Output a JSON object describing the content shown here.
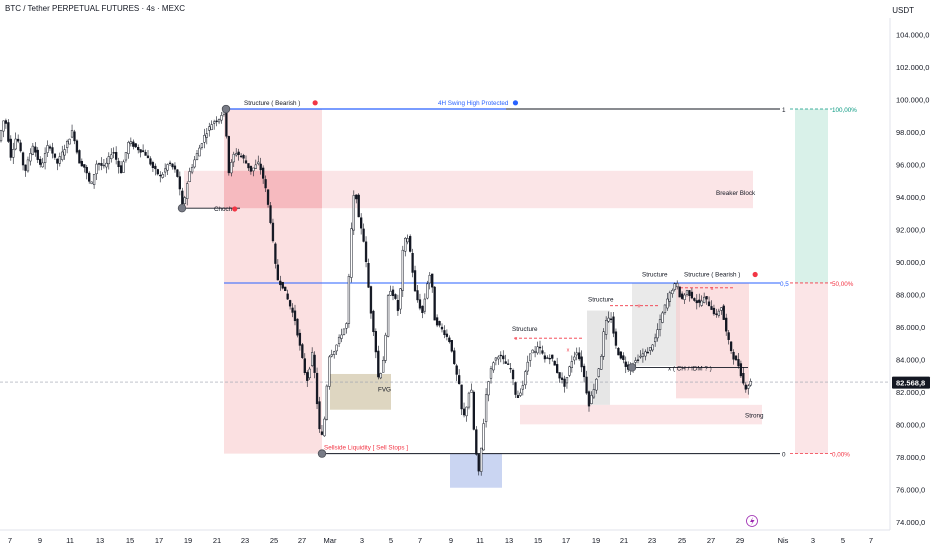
{
  "header": {
    "title": "BTC / Tether PERPETUAL FUTURES · 4s · MEXC",
    "currency": "USDT"
  },
  "colors": {
    "bull": "#131722",
    "bear": "#131722",
    "red_zone": "#f7c6c9",
    "blue_line": "#2962ff",
    "green_zone": "#cfeee4",
    "fvg": "#d8cfb6",
    "gray_zone": "#dcdcdc",
    "price_tag": "#131722"
  },
  "chart_data": {
    "type": "candlestick",
    "ylim": [
      73500,
      105000
    ],
    "xlim": [
      0,
      871
    ],
    "yticks": [
      {
        "value": 74000,
        "label": "74.000,0"
      },
      {
        "value": 76000,
        "label": "76.000,0"
      },
      {
        "value": 78000,
        "label": "78.000,0"
      },
      {
        "value": 80000,
        "label": "80.000,0"
      },
      {
        "value": 82000,
        "label": "82.000,0"
      },
      {
        "value": 84000,
        "label": "84.000,0"
      },
      {
        "value": 86000,
        "label": "86.000,0"
      },
      {
        "value": 88000,
        "label": "88.000,0"
      },
      {
        "value": 90000,
        "label": "90.000,0"
      },
      {
        "value": 92000,
        "label": "92.000,0"
      },
      {
        "value": 94000,
        "label": "94.000,0"
      },
      {
        "value": 96000,
        "label": "96.000,0"
      },
      {
        "value": 98000,
        "label": "98.000,0"
      },
      {
        "value": 100000,
        "label": "100.000,0"
      },
      {
        "value": 102000,
        "label": "102.000,0"
      },
      {
        "value": 104000,
        "label": "104.000,0"
      }
    ],
    "xticks": [
      {
        "t": 10,
        "label": "7"
      },
      {
        "t": 40,
        "label": "9"
      },
      {
        "t": 70,
        "label": "11"
      },
      {
        "t": 100,
        "label": "13"
      },
      {
        "t": 130,
        "label": "15"
      },
      {
        "t": 159,
        "label": "17"
      },
      {
        "t": 188,
        "label": "19"
      },
      {
        "t": 217,
        "label": "21"
      },
      {
        "t": 245,
        "label": "23"
      },
      {
        "t": 274,
        "label": "25"
      },
      {
        "t": 302,
        "label": "27"
      },
      {
        "t": 330,
        "label": "Mar"
      },
      {
        "t": 362,
        "label": "3"
      },
      {
        "t": 391,
        "label": "5"
      },
      {
        "t": 420,
        "label": "7"
      },
      {
        "t": 451,
        "label": "9"
      },
      {
        "t": 480,
        "label": "11"
      },
      {
        "t": 509,
        "label": "13"
      },
      {
        "t": 538,
        "label": "15"
      },
      {
        "t": 566,
        "label": "17"
      },
      {
        "t": 596,
        "label": "19"
      },
      {
        "t": 624,
        "label": "21"
      },
      {
        "t": 652,
        "label": "23"
      },
      {
        "t": 682,
        "label": "25"
      },
      {
        "t": 711,
        "label": "27"
      },
      {
        "t": 740,
        "label": "29"
      },
      {
        "t": 783,
        "label": "Nis"
      },
      {
        "t": 813,
        "label": "3"
      },
      {
        "t": 843,
        "label": "5"
      },
      {
        "t": 871,
        "label": "7"
      }
    ],
    "price_path": [
      [
        0,
        97500
      ],
      [
        6,
        99000
      ],
      [
        12,
        96500
      ],
      [
        18,
        97800
      ],
      [
        26,
        95500
      ],
      [
        34,
        97200
      ],
      [
        42,
        95800
      ],
      [
        50,
        97300
      ],
      [
        58,
        96000
      ],
      [
        66,
        97000
      ],
      [
        74,
        98100
      ],
      [
        80,
        96200
      ],
      [
        86,
        95800
      ],
      [
        92,
        94600
      ],
      [
        98,
        96100
      ],
      [
        106,
        95800
      ],
      [
        114,
        96900
      ],
      [
        122,
        95500
      ],
      [
        130,
        97400
      ],
      [
        138,
        97000
      ],
      [
        146,
        96700
      ],
      [
        154,
        95800
      ],
      [
        162,
        95200
      ],
      [
        170,
        96100
      ],
      [
        178,
        95500
      ],
      [
        184,
        93300
      ],
      [
        190,
        95400
      ],
      [
        198,
        96600
      ],
      [
        206,
        97800
      ],
      [
        214,
        98600
      ],
      [
        220,
        98800
      ],
      [
        226,
        99400
      ],
      [
        230,
        95500
      ],
      [
        236,
        96800
      ],
      [
        244,
        96400
      ],
      [
        252,
        95600
      ],
      [
        260,
        96100
      ],
      [
        266,
        94800
      ],
      [
        272,
        92400
      ],
      [
        278,
        89000
      ],
      [
        284,
        88500
      ],
      [
        290,
        87500
      ],
      [
        296,
        86500
      ],
      [
        302,
        84500
      ],
      [
        308,
        82600
      ],
      [
        314,
        84500
      ],
      [
        318,
        81500
      ],
      [
        322,
        78800
      ],
      [
        326,
        80500
      ],
      [
        330,
        84200
      ],
      [
        336,
        84600
      ],
      [
        342,
        85500
      ],
      [
        348,
        86200
      ],
      [
        352,
        91500
      ],
      [
        356,
        94800
      ],
      [
        360,
        92600
      ],
      [
        364,
        91800
      ],
      [
        368,
        89500
      ],
      [
        372,
        87000
      ],
      [
        376,
        85200
      ],
      [
        380,
        82600
      ],
      [
        386,
        84500
      ],
      [
        390,
        88500
      ],
      [
        396,
        87800
      ],
      [
        400,
        86800
      ],
      [
        404,
        90600
      ],
      [
        408,
        91800
      ],
      [
        412,
        90400
      ],
      [
        416,
        88200
      ],
      [
        420,
        87400
      ],
      [
        424,
        86800
      ],
      [
        428,
        88600
      ],
      [
        432,
        89400
      ],
      [
        436,
        86400
      ],
      [
        440,
        86100
      ],
      [
        446,
        85600
      ],
      [
        452,
        85000
      ],
      [
        456,
        83400
      ],
      [
        460,
        82600
      ],
      [
        464,
        80200
      ],
      [
        468,
        81200
      ],
      [
        472,
        82600
      ],
      [
        476,
        78800
      ],
      [
        480,
        77000
      ],
      [
        484,
        79500
      ],
      [
        488,
        82300
      ],
      [
        494,
        83800
      ],
      [
        500,
        84300
      ],
      [
        506,
        83800
      ],
      [
        512,
        83400
      ],
      [
        518,
        81500
      ],
      [
        524,
        82400
      ],
      [
        528,
        83600
      ],
      [
        532,
        84600
      ],
      [
        536,
        84400
      ],
      [
        540,
        84800
      ],
      [
        546,
        84000
      ],
      [
        552,
        84200
      ],
      [
        560,
        83000
      ],
      [
        566,
        82400
      ],
      [
        572,
        83800
      ],
      [
        578,
        84500
      ],
      [
        584,
        83400
      ],
      [
        590,
        81200
      ],
      [
        596,
        82400
      ],
      [
        602,
        84000
      ],
      [
        606,
        86200
      ],
      [
        612,
        86600
      ],
      [
        618,
        84500
      ],
      [
        624,
        84000
      ],
      [
        628,
        83500
      ],
      [
        632,
        83500
      ],
      [
        638,
        84000
      ],
      [
        644,
        84300
      ],
      [
        650,
        84500
      ],
      [
        656,
        85200
      ],
      [
        662,
        86500
      ],
      [
        668,
        87600
      ],
      [
        674,
        88400
      ],
      [
        678,
        88700
      ],
      [
        682,
        87600
      ],
      [
        688,
        88200
      ],
      [
        694,
        87800
      ],
      [
        700,
        87400
      ],
      [
        706,
        87800
      ],
      [
        712,
        87200
      ],
      [
        718,
        86600
      ],
      [
        722,
        87400
      ],
      [
        728,
        85500
      ],
      [
        734,
        84200
      ],
      [
        740,
        83600
      ],
      [
        746,
        82200
      ],
      [
        752,
        82600
      ]
    ],
    "zones": [
      {
        "type": "red",
        "x0": 224,
        "x1": 322,
        "y0": 78200,
        "y1": 99400,
        "opacity": 0.55
      },
      {
        "type": "red",
        "x0": 184,
        "x1": 753,
        "y0": 93300,
        "y1": 95600,
        "opacity": 0.45
      },
      {
        "type": "red_strong",
        "x0": 224,
        "x1": 322,
        "y0": 93300,
        "y1": 95600,
        "opacity": 0.45
      },
      {
        "type": "fvg",
        "x0": 330,
        "x1": 391,
        "y0": 80900,
        "y1": 83100,
        "opacity": 0.85
      },
      {
        "type": "blue",
        "x0": 450,
        "x1": 502,
        "y0": 76100,
        "y1": 78200,
        "opacity": 0.55
      },
      {
        "type": "red",
        "x0": 520,
        "x1": 762,
        "y0": 80000,
        "y1": 81200,
        "opacity": 0.45
      },
      {
        "type": "gray",
        "x0": 587,
        "x1": 610,
        "y0": 81200,
        "y1": 87000,
        "opacity": 0.7
      },
      {
        "type": "gray",
        "x0": 632,
        "x1": 680,
        "y0": 83600,
        "y1": 88700,
        "opacity": 0.6
      },
      {
        "type": "red",
        "x0": 676,
        "x1": 749,
        "y0": 81600,
        "y1": 88700,
        "opacity": 0.55
      },
      {
        "type": "green",
        "x0": 795,
        "x1": 828,
        "y0": 88700,
        "y1": 99400,
        "opacity": 0.8
      },
      {
        "type": "red",
        "x0": 795,
        "x1": 828,
        "y0": 78200,
        "y1": 88700,
        "opacity": 0.45
      }
    ],
    "lines": [
      {
        "y": 99400,
        "x0": 226,
        "x1": 780,
        "color": "#131722",
        "width": 1
      },
      {
        "y": 99400,
        "x0": 226,
        "x1": 506,
        "color": "#2962ff",
        "width": 1.2
      },
      {
        "y": 88700,
        "x0": 224,
        "x1": 780,
        "color": "#2962ff",
        "width": 1
      },
      {
        "y": 78200,
        "x0": 322,
        "x1": 780,
        "color": "#131722",
        "width": 1
      },
      {
        "y": 93300,
        "x0": 182,
        "x1": 240,
        "color": "#131722",
        "width": 0.8
      },
      {
        "y": 83500,
        "x0": 632,
        "x1": 748,
        "color": "#131722",
        "width": 0.8
      },
      {
        "y": 82600,
        "x0": 0,
        "x1": 890,
        "color": "#9aa0ad",
        "width": 0.6,
        "dash": true
      },
      {
        "y": 99400,
        "x0": 790,
        "x1": 832,
        "color": "#089981",
        "width": 0.8,
        "dash": true
      },
      {
        "y": 88700,
        "x0": 790,
        "x1": 832,
        "color": "#f23645",
        "width": 0.8,
        "dash": true
      },
      {
        "y": 78200,
        "x0": 790,
        "x1": 832,
        "color": "#f23645",
        "width": 0.8,
        "dash": true
      }
    ],
    "structure_lines": [
      {
        "y": 85300,
        "x0": 514,
        "x1": 582,
        "color": "#f23645"
      },
      {
        "y": 87300,
        "x0": 610,
        "x1": 660,
        "color": "#f23645"
      },
      {
        "y": 88400,
        "x0": 680,
        "x1": 735,
        "color": "#f23645"
      }
    ],
    "pivots": [
      {
        "t": 226,
        "y": 99400
      },
      {
        "t": 182,
        "y": 93300
      },
      {
        "t": 322,
        "y": 78200
      },
      {
        "t": 632,
        "y": 83500
      }
    ],
    "annotations": [
      {
        "t": 244,
        "y": 99400,
        "text": "Structure ( Bearish )",
        "color": "#131722",
        "anchor": "start",
        "dy": -4,
        "dot": "red"
      },
      {
        "t": 438,
        "y": 99400,
        "text": "4H Swing High Protected",
        "color": "#2962ff",
        "anchor": "start",
        "dy": -4,
        "dot": "blue"
      },
      {
        "t": 716,
        "y": 94300,
        "text": "Breaker Block",
        "color": "#131722",
        "anchor": "start",
        "dy": 3
      },
      {
        "t": 214,
        "y": 93300,
        "text": "Choch",
        "color": "#131722",
        "anchor": "start",
        "dy": 3,
        "dot": "red"
      },
      {
        "t": 378,
        "y": 82200,
        "text": "FVG",
        "color": "#131722",
        "anchor": "start",
        "dy": 3
      },
      {
        "t": 324,
        "y": 78200,
        "text": "Sellside Liquidity [ Sell Stops ]",
        "color": "#f23645",
        "anchor": "start",
        "dy": -4
      },
      {
        "t": 512,
        "y": 85500,
        "text": "Structure",
        "color": "#131722",
        "anchor": "start",
        "dy": -4
      },
      {
        "t": 588,
        "y": 87300,
        "text": "Structure",
        "color": "#131722",
        "anchor": "start",
        "dy": -4
      },
      {
        "t": 642,
        "y": 88900,
        "text": "Structure",
        "color": "#131722",
        "anchor": "start",
        "dy": -3
      },
      {
        "t": 684,
        "y": 88900,
        "text": "Structure ( Bearish )",
        "color": "#131722",
        "anchor": "start",
        "dy": -3,
        "dot": "red"
      },
      {
        "t": 668,
        "y": 83500,
        "text": "x ( CH / IDM ? )",
        "color": "#131722",
        "anchor": "start",
        "dy": 3
      },
      {
        "t": 745,
        "y": 80600,
        "text": "Strong",
        "color": "#131722",
        "anchor": "start",
        "dy": 3
      },
      {
        "t": 782,
        "y": 99400,
        "text": "1",
        "color": "#131722",
        "anchor": "start",
        "dy": 3
      },
      {
        "t": 780,
        "y": 88700,
        "text": "0,5",
        "color": "#2962ff",
        "anchor": "start",
        "dy": 3
      },
      {
        "t": 782,
        "y": 78200,
        "text": "0",
        "color": "#131722",
        "anchor": "start",
        "dy": 3
      },
      {
        "t": 832,
        "y": 99400,
        "text": "100,00%",
        "color": "#089981",
        "anchor": "start",
        "dy": 3
      },
      {
        "t": 832,
        "y": 88700,
        "text": "50,00%",
        "color": "#f23645",
        "anchor": "start",
        "dy": 3
      },
      {
        "t": 832,
        "y": 78200,
        "text": "0,00%",
        "color": "#f23645",
        "anchor": "start",
        "dy": 3
      }
    ],
    "markers": [
      {
        "t": 516,
        "y": 85300,
        "text": "x"
      },
      {
        "t": 568,
        "y": 84600,
        "text": "x"
      },
      {
        "t": 639,
        "y": 87300,
        "text": "x"
      },
      {
        "t": 712,
        "y": 88400,
        "text": "x"
      }
    ],
    "last_price": {
      "value": 82568.8,
      "label": "82.568,8"
    }
  }
}
